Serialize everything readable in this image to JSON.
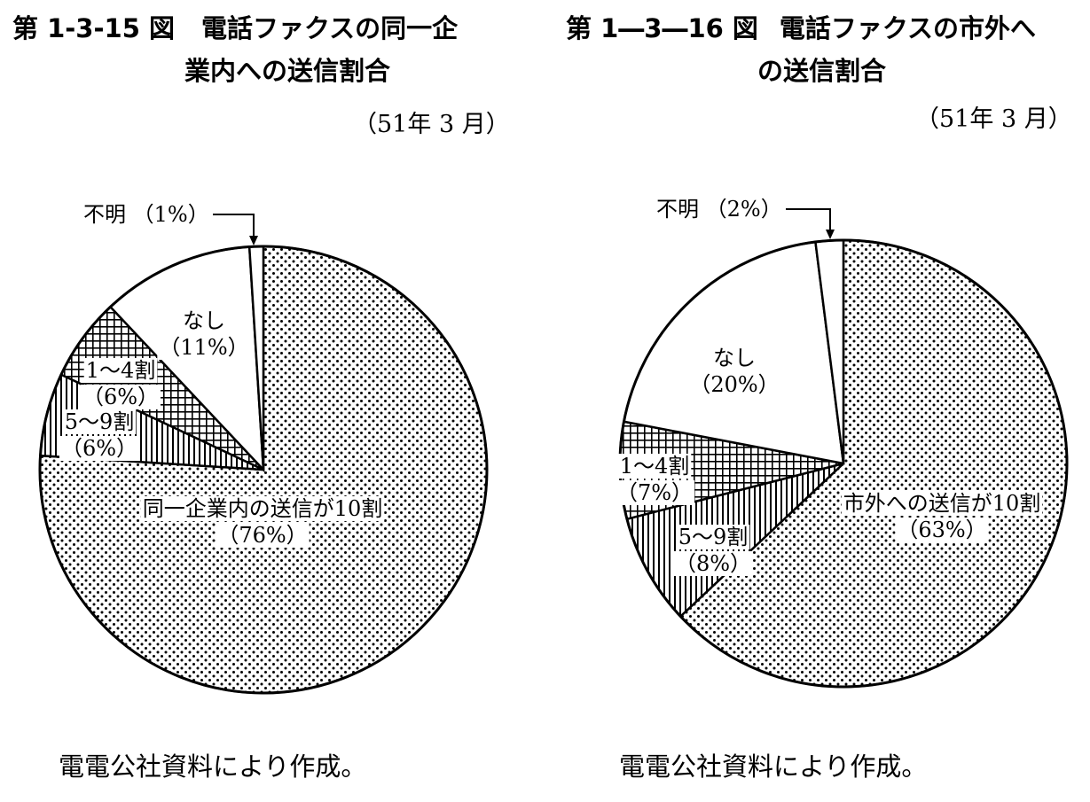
{
  "charts": [
    {
      "id": "left",
      "fig_num": "第 1-3-15 図",
      "title_line1": "電話ファクスの同一企",
      "title_line2": "業内への送信割合",
      "date": "（51年 3 月）",
      "source": "電電公社資料により作成。",
      "chart_data": {
        "type": "pie",
        "title": "電話ファクスの同一企業内への送信割合",
        "slices": [
          {
            "label": "同一企業内の送信が10割",
            "pct_label": "（76%）",
            "value": 76,
            "pattern": "dots"
          },
          {
            "label": "5～9割",
            "pct_label": "（6%）",
            "value": 6,
            "pattern": "vlines"
          },
          {
            "label": "1～4割",
            "pct_label": "（6%）",
            "value": 6,
            "pattern": "grid"
          },
          {
            "label": "なし",
            "pct_label": "（11%）",
            "value": 11,
            "pattern": "none"
          },
          {
            "label": "不明",
            "pct_label": "（1%）",
            "value": 1,
            "pattern": "none"
          }
        ]
      }
    },
    {
      "id": "right",
      "fig_num": "第 1―3―16 図",
      "title_line1": "電話ファクスの市外へ",
      "title_line2": "の送信割合",
      "date": "（51年 3 月）",
      "source": "電電公社資料により作成。",
      "chart_data": {
        "type": "pie",
        "title": "電話ファクスの市外への送信割合",
        "slices": [
          {
            "label": "市外への送信が10割",
            "pct_label": "（63%）",
            "value": 63,
            "pattern": "dots"
          },
          {
            "label": "5～9割",
            "pct_label": "（8%）",
            "value": 8,
            "pattern": "vlines"
          },
          {
            "label": "1～4割",
            "pct_label": "（7%）",
            "value": 7,
            "pattern": "grid"
          },
          {
            "label": "なし",
            "pct_label": "（20%）",
            "value": 20,
            "pattern": "none"
          },
          {
            "label": "不明",
            "pct_label": "（2%）",
            "value": 2,
            "pattern": "none"
          }
        ]
      }
    }
  ]
}
